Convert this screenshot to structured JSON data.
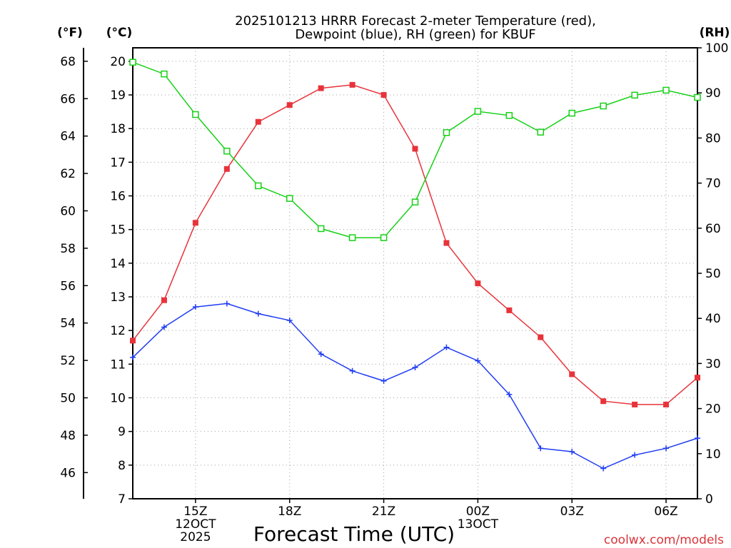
{
  "chart_data": {
    "type": "line",
    "title_lines": [
      "2025101213 HRRR Forecast 2-meter Temperature (red),",
      "Dewpoint (blue), RH (green) for KBUF"
    ],
    "xlabel": "Forecast Time (UTC)",
    "credit": "coolwx.com/models",
    "units": {
      "fahrenheit": "(°F)",
      "celsius": "(°C)",
      "rh": "(RH)"
    },
    "x_hours": [
      13,
      14,
      15,
      16,
      17,
      18,
      19,
      20,
      21,
      22,
      23,
      24,
      25,
      26,
      27,
      28,
      29,
      30,
      31
    ],
    "xlim": [
      13,
      31
    ],
    "x_ticks": [
      {
        "hour": 15,
        "lines": [
          "15Z",
          "12OCT",
          "2025"
        ]
      },
      {
        "hour": 18,
        "lines": [
          "18Z"
        ]
      },
      {
        "hour": 21,
        "lines": [
          "21Z"
        ]
      },
      {
        "hour": 24,
        "lines": [
          "00Z",
          "13OCT"
        ]
      },
      {
        "hour": 27,
        "lines": [
          "03Z"
        ]
      },
      {
        "hour": 30,
        "lines": [
          "06Z"
        ]
      }
    ],
    "celsius_axis": {
      "ylim": [
        7,
        20.4
      ],
      "ticks": [
        7,
        8,
        9,
        10,
        11,
        12,
        13,
        14,
        15,
        16,
        17,
        18,
        19,
        20
      ]
    },
    "fahrenheit_axis": {
      "ticks": [
        46,
        48,
        50,
        52,
        54,
        56,
        58,
        60,
        62,
        64,
        66,
        68
      ]
    },
    "rh_axis": {
      "ylim": [
        0,
        100
      ],
      "ticks": [
        0,
        10,
        20,
        30,
        40,
        50,
        60,
        70,
        80,
        90,
        100
      ]
    },
    "series": [
      {
        "name": "Temperature",
        "axis": "celsius",
        "color": "#e8333a",
        "marker": "filled-square",
        "values": [
          11.7,
          12.9,
          15.2,
          16.8,
          18.2,
          18.7,
          19.2,
          19.3,
          19.0,
          17.4,
          14.6,
          13.4,
          12.6,
          11.8,
          10.7,
          9.9,
          9.8,
          9.8,
          10.6
        ]
      },
      {
        "name": "Dewpoint",
        "axis": "celsius",
        "color": "#1f3cf2",
        "marker": "plus",
        "values": [
          11.2,
          12.1,
          12.7,
          12.8,
          12.5,
          12.3,
          11.3,
          10.8,
          10.5,
          10.9,
          11.5,
          11.1,
          10.1,
          8.5,
          8.4,
          7.9,
          8.3,
          8.5,
          8.8
        ]
      },
      {
        "name": "RH",
        "axis": "rh",
        "color": "#17d117",
        "marker": "open-square",
        "values": [
          96.8,
          94.2,
          85.2,
          77.1,
          69.4,
          66.6,
          59.9,
          57.9,
          57.9,
          65.8,
          81.2,
          85.9,
          85.0,
          81.3,
          85.5,
          87.1,
          89.5,
          90.6,
          89.0
        ]
      }
    ]
  }
}
